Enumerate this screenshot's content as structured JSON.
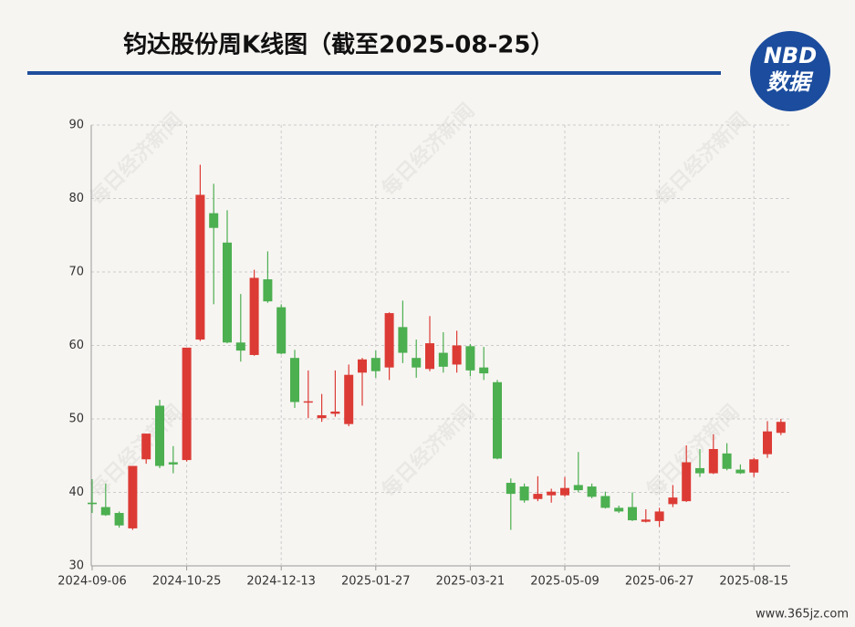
{
  "chart_data": {
    "type": "candlestick",
    "title": "钧达股份周K线图（截至2025-08-25）",
    "logo": {
      "top": "NBD",
      "bottom": "数据"
    },
    "watermark": "每日经济新闻",
    "footer": "www.365jz.com",
    "categories": [
      "2024-09-06",
      null,
      null,
      null,
      null,
      null,
      null,
      "2024-10-25",
      null,
      null,
      null,
      null,
      null,
      null,
      "2024-12-13",
      null,
      null,
      null,
      null,
      null,
      null,
      "2025-01-27",
      null,
      null,
      null,
      null,
      null,
      null,
      "2025-03-21",
      null,
      null,
      null,
      null,
      null,
      null,
      "2025-05-09",
      null,
      null,
      null,
      null,
      null,
      null,
      "2025-06-27",
      null,
      null,
      null,
      null,
      null,
      null,
      "2025-08-15",
      null,
      null
    ],
    "open": [
      38.6,
      38.0,
      37.2,
      35.1,
      44.5,
      51.8,
      44.1,
      44.4,
      60.8,
      78.0,
      74.0,
      60.4,
      58.7,
      69.0,
      65.2,
      58.3,
      52.3,
      50.1,
      50.7,
      49.3,
      56.3,
      58.3,
      57.0,
      62.5,
      58.3,
      56.8,
      59.0,
      57.4,
      59.9,
      57.0,
      55.0,
      41.3,
      40.8,
      39.1,
      39.6,
      39.6,
      41.0,
      40.8,
      39.5,
      37.9,
      38.0,
      36.0,
      36.1,
      38.4,
      38.8,
      43.3,
      42.6,
      45.3,
      43.1,
      42.7,
      45.2,
      48.1
    ],
    "high": [
      41.8,
      41.2,
      37.4,
      43.6,
      48.0,
      52.6,
      46.3,
      59.7,
      84.6,
      82.0,
      78.4,
      67.0,
      70.3,
      72.8,
      65.6,
      59.4,
      56.6,
      53.4,
      56.6,
      57.4,
      58.3,
      59.3,
      64.5,
      66.1,
      60.8,
      64.0,
      61.8,
      62.0,
      60.2,
      59.8,
      55.3,
      41.9,
      41.2,
      42.2,
      40.5,
      42.1,
      45.5,
      41.2,
      40.1,
      38.2,
      40.0,
      37.7,
      37.9,
      41.0,
      46.4,
      45.9,
      47.9,
      46.7,
      43.8,
      44.7,
      49.7,
      50.0
    ],
    "low": [
      37.2,
      36.8,
      35.2,
      34.9,
      43.9,
      43.3,
      42.6,
      44.2,
      60.6,
      65.6,
      60.3,
      57.8,
      58.6,
      65.8,
      58.8,
      51.5,
      50.1,
      49.6,
      50.3,
      49.0,
      51.8,
      55.6,
      55.3,
      57.6,
      55.6,
      56.5,
      56.3,
      56.3,
      55.8,
      55.3,
      44.5,
      34.9,
      38.6,
      38.8,
      38.6,
      39.4,
      40.0,
      39.2,
      37.8,
      37.2,
      36.1,
      35.9,
      35.3,
      38.0,
      38.7,
      42.1,
      42.5,
      43.0,
      42.5,
      42.1,
      44.7,
      47.8
    ],
    "close": [
      38.4,
      36.9,
      35.5,
      43.6,
      48.0,
      43.6,
      43.8,
      59.7,
      80.5,
      76.0,
      60.4,
      59.3,
      69.2,
      66.0,
      58.9,
      52.3,
      52.4,
      50.5,
      51.0,
      56.0,
      58.1,
      56.5,
      64.4,
      59.0,
      57.0,
      60.3,
      57.1,
      60.0,
      56.6,
      56.2,
      44.6,
      39.8,
      38.9,
      39.8,
      40.1,
      40.6,
      40.3,
      39.4,
      37.9,
      37.4,
      36.2,
      36.3,
      37.4,
      39.3,
      44.1,
      42.6,
      45.9,
      43.2,
      42.6,
      44.5,
      48.3,
      49.6
    ],
    "up_color": "#dc3b35",
    "down_color": "#4caf50",
    "ylim": [
      30,
      90
    ],
    "yticks": [
      30,
      40,
      50,
      60,
      70,
      80,
      90
    ],
    "grid": true
  }
}
